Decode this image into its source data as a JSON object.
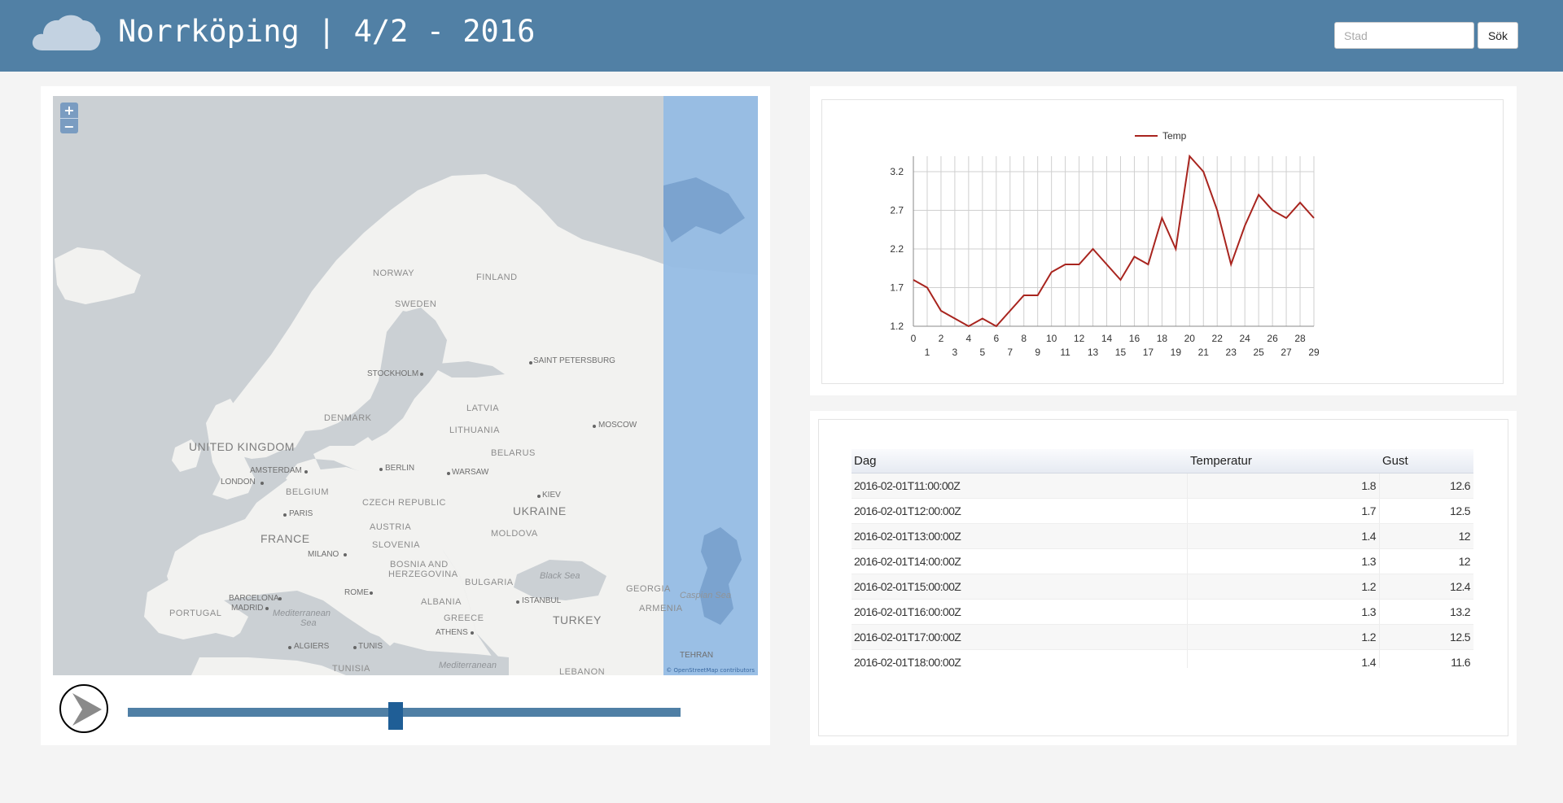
{
  "header": {
    "title": "Norrköping | 4/2 - 2016",
    "logo_icon": "cloud-icon",
    "search": {
      "placeholder": "Stad",
      "value": "",
      "button_label": "Sök"
    },
    "colors": {
      "bar": "#5180a5"
    }
  },
  "map": {
    "zoom_in_label": "+",
    "zoom_out_label": "−",
    "attribution": "© OpenStreetMap contributors",
    "labels": {
      "norway": "NORWAY",
      "sweden": "SWEDEN",
      "finland": "FINLAND",
      "saint_petersburg": "SAINT PETERSBURG",
      "stockholm": "STOCKHOLM",
      "denmark": "DENMARK",
      "latvia": "LATVIA",
      "lithuania": "LITHUANIA",
      "moscow": "MOSCOW",
      "united_kingdom": "UNITED KINGDOM",
      "amsterdam": "AMSTERDAM",
      "berlin": "BERLIN",
      "warsaw": "WARSAW",
      "belarus": "BELARUS",
      "london": "LONDON",
      "belgium": "BELGIUM",
      "kiev": "KIEV",
      "czech_republic": "CZECH REPUBLIC",
      "ukraine": "UKRAINE",
      "paris": "PARIS",
      "austria": "AUSTRIA",
      "france": "FRANCE",
      "moldova": "MOLDOVA",
      "milano": "MILANO",
      "slovenia": "SLOVENIA",
      "bosnia": "BOSNIA AND",
      "herzegovina": "HERZEGOVINA",
      "black_sea": "Black Sea",
      "bulgaria": "BULGARIA",
      "georgia": "GEORGIA",
      "barcelona": "BARCELONA",
      "rome": "ROME",
      "madrid": "MADRID",
      "albania": "ALBANIA",
      "istanbul": "ISTANBUL",
      "caspian_sea": "Caspian Sea",
      "portugal": "PORTUGAL",
      "mediterranean_sea_1": "Mediterranean",
      "sea_1": "Sea",
      "armenia": "ARMENIA",
      "greece": "GREECE",
      "turkey": "TURKEY",
      "athens": "ATHENS",
      "algiers": "ALGIERS",
      "tunis": "TUNIS",
      "tehran": "TEHRAN",
      "tunisia": "TUNISIA",
      "mediterranean_2": "Mediterranean",
      "lebanon": "LEBANON"
    }
  },
  "player": {
    "play_icon": "play-arrow-icon",
    "slider_position": 0.485
  },
  "chart_data": {
    "type": "line",
    "x": [
      0,
      1,
      2,
      3,
      4,
      5,
      6,
      7,
      8,
      9,
      10,
      11,
      12,
      13,
      14,
      15,
      16,
      17,
      18,
      19,
      20,
      21,
      22,
      23,
      24,
      25,
      26,
      27,
      28,
      29
    ],
    "series": [
      {
        "name": "Temp",
        "color": "#a8241e",
        "values": [
          1.8,
          1.7,
          1.4,
          1.3,
          1.2,
          1.3,
          1.2,
          1.4,
          1.6,
          1.6,
          1.9,
          2.0,
          2.0,
          2.2,
          2.0,
          1.8,
          2.1,
          2.0,
          2.6,
          2.2,
          3.4,
          3.2,
          2.7,
          2.0,
          2.5,
          2.9,
          2.7,
          2.6,
          2.8,
          2.6
        ]
      }
    ],
    "yticks": [
      1.2,
      1.7,
      2.2,
      2.7,
      3.2
    ],
    "ylim": [
      1.2,
      3.4
    ],
    "xlim": [
      0,
      29
    ],
    "legend": "top-center",
    "grid": true
  },
  "table": {
    "columns": [
      "Dag",
      "Temperatur",
      "Gust"
    ],
    "rows": [
      [
        "2016-02-01T11:00:00Z",
        "1.8",
        "12.6"
      ],
      [
        "2016-02-01T12:00:00Z",
        "1.7",
        "12.5"
      ],
      [
        "2016-02-01T13:00:00Z",
        "1.4",
        "12"
      ],
      [
        "2016-02-01T14:00:00Z",
        "1.3",
        "12"
      ],
      [
        "2016-02-01T15:00:00Z",
        "1.2",
        "12.4"
      ],
      [
        "2016-02-01T16:00:00Z",
        "1.3",
        "13.2"
      ],
      [
        "2016-02-01T17:00:00Z",
        "1.2",
        "12.5"
      ],
      [
        "2016-02-01T18:00:00Z",
        "1.4",
        "11.6"
      ]
    ]
  }
}
